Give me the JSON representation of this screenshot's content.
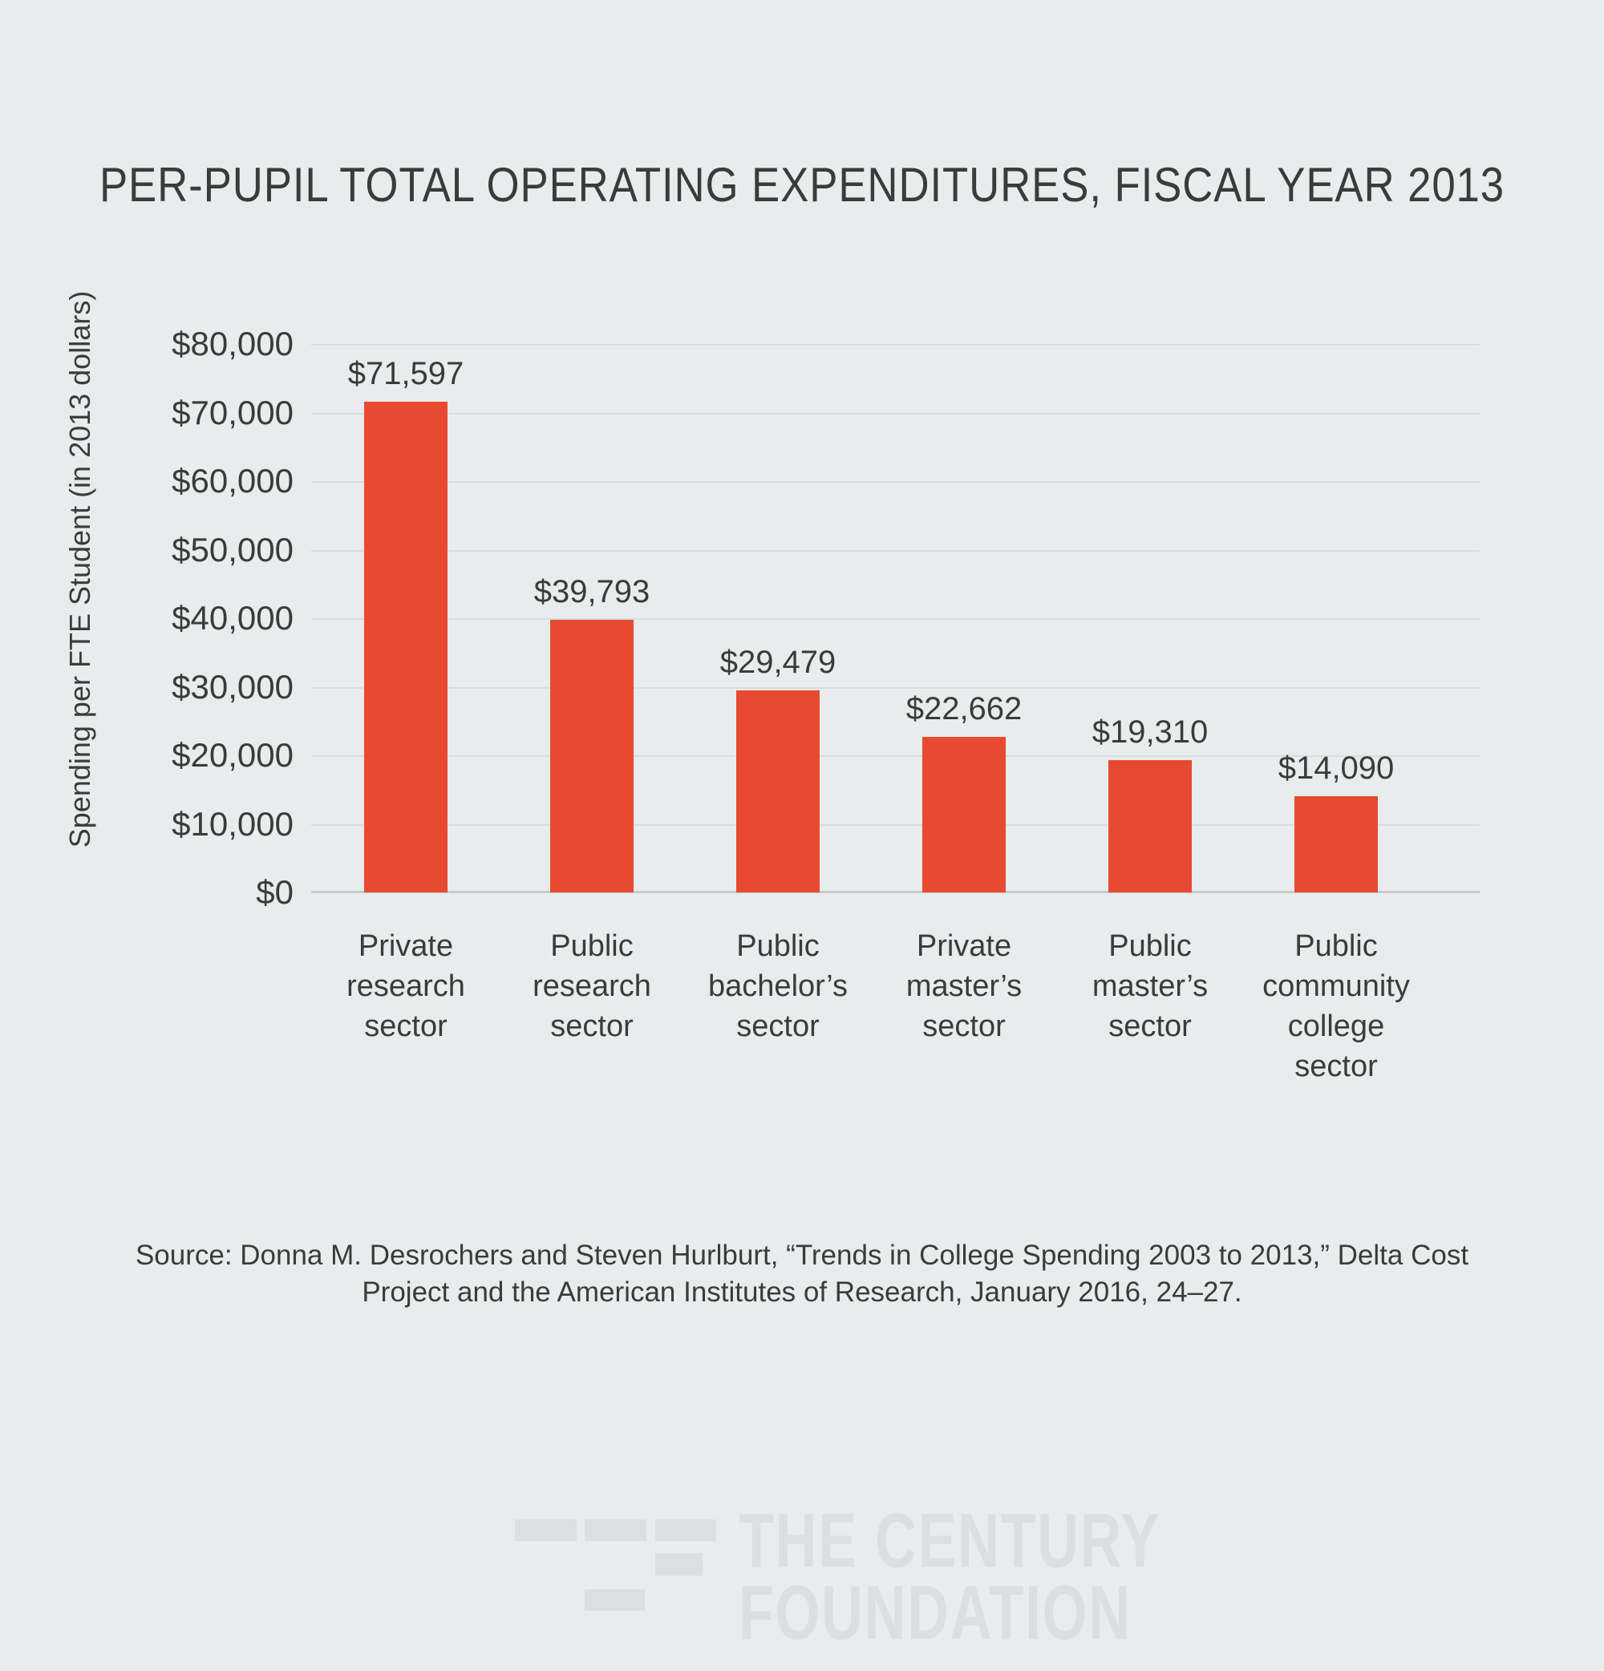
{
  "title": "PER-PUPIL TOTAL OPERATING EXPENDITURES, FISCAL YEAR 2013",
  "chart_data": {
    "type": "bar",
    "title": "PER-PUPIL TOTAL OPERATING EXPENDITURES, FISCAL YEAR 2013",
    "xlabel": "",
    "ylabel": "Spending per FTE Student (in 2013 dollars)",
    "categories": [
      "Private research sector",
      "Public research sector",
      "Public bachelor’s sector",
      "Private master’s sector",
      "Public master’s sector",
      "Public community college sector"
    ],
    "categories_lines": [
      [
        "Private",
        "research",
        "sector"
      ],
      [
        "Public",
        "research",
        "sector"
      ],
      [
        "Public",
        "bachelor’s",
        "sector"
      ],
      [
        "Private",
        "master’s",
        "sector"
      ],
      [
        "Public",
        "master’s",
        "sector"
      ],
      [
        "Public",
        "community",
        "college sector"
      ]
    ],
    "values": [
      71597,
      39793,
      29479,
      22662,
      19310,
      14090
    ],
    "value_labels": [
      "$71,597",
      "$39,793",
      "$29,479",
      "$22,662",
      "$19,310",
      "$14,090"
    ],
    "y_ticks": [
      "$80,000",
      "$70,000",
      "$60,000",
      "$50,000",
      "$40,000",
      "$30,000",
      "$20,000",
      "$10,000",
      "$0"
    ],
    "ylim": [
      0,
      80000
    ],
    "grid": true,
    "legend": "none",
    "bar_color": "#e84a31"
  },
  "source": {
    "line1": "Source: Donna M. Desrochers and Steven Hurlburt, “Trends in College Spending 2003 to 2013,” Delta Cost",
    "line2": "Project and the American Institutes of Research, January 2016, 24–27."
  },
  "footer_logo": {
    "line1": "THE CENTURY",
    "line2": "FOUNDATION"
  },
  "colors": {
    "background": "#e8ecec",
    "bar": "#e84a31",
    "text": "#3b3b3b",
    "gridline": "#d8dddd",
    "axis_line": "#c5caca",
    "logo": "#dcdfdf"
  }
}
